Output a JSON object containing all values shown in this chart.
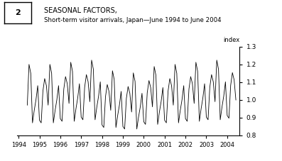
{
  "title_line1": "SEASONAL FACTORS,",
  "title_line2": "Short-term visitor arrivals, Japan—June 1994 to June 2004",
  "box_number": "2",
  "ylabel": "index",
  "ylim": [
    0.8,
    1.3
  ],
  "yticks": [
    0.8,
    0.9,
    1.0,
    1.1,
    1.2,
    1.3
  ],
  "xlim_start": 1993.92,
  "xlim_end": 2004.6,
  "xticks": [
    1994,
    1995,
    1996,
    1997,
    1998,
    1999,
    2000,
    2001,
    2002,
    2003,
    2004
  ],
  "line_color": "#000000",
  "background_color": "#ffffff",
  "seasonal_pattern": {
    "0": 0.885,
    "1": 0.87,
    "2": 1.05,
    "3": 1.12,
    "4": 1.08,
    "5": 0.97,
    "6": 1.2,
    "7": 1.15,
    "8": 0.87,
    "9": 0.94,
    "10": 1.0,
    "11": 1.08
  },
  "trend_by_year": {
    "1994": 1.0,
    "1995": 1.0,
    "1996": 1.01,
    "1997": 1.02,
    "1998": 0.97,
    "1999": 0.96,
    "2000": 0.99,
    "2001": 1.0,
    "2002": 1.01,
    "2003": 1.02,
    "2004": 1.03
  }
}
